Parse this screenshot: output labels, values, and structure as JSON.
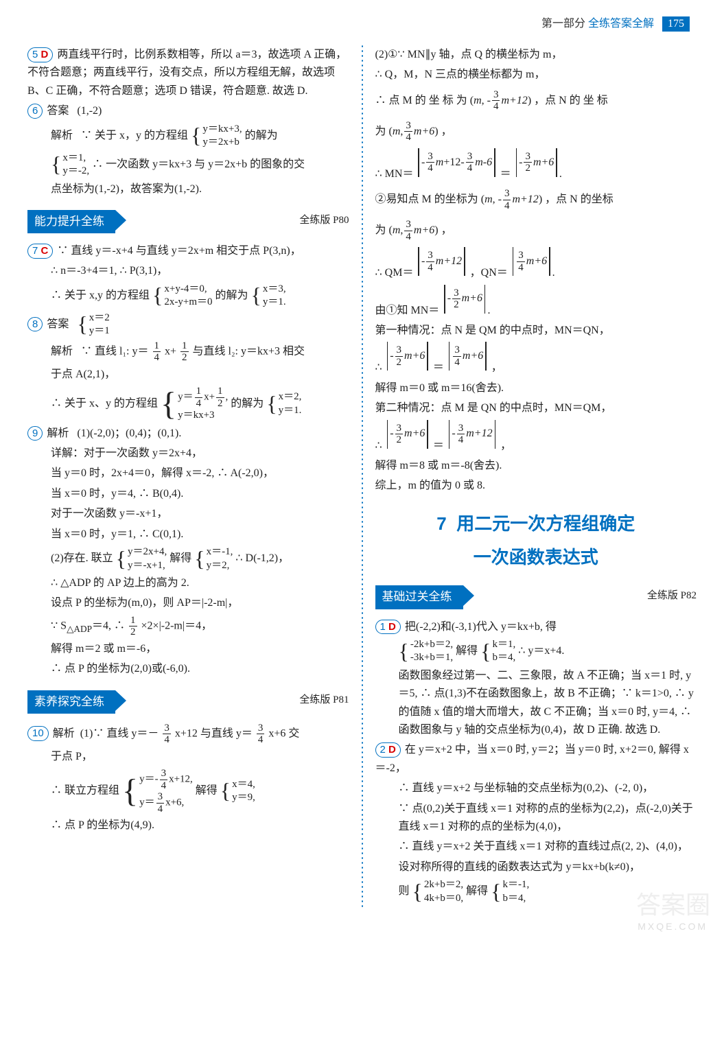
{
  "header": {
    "part": "第一部分",
    "title": "全练答案全解",
    "pagenum": "175"
  },
  "sections": {
    "s1": {
      "label": "能力提升全练",
      "ref": "全练版 P80"
    },
    "s2": {
      "label": "素养探究全练",
      "ref": "全练版 P81"
    },
    "s3": {
      "label": "基础过关全练",
      "ref": "全练版 P82"
    }
  },
  "chapter": {
    "num": "7",
    "title1": "用二元一次方程组确定",
    "title2": "一次函数表达式"
  },
  "q5": {
    "num": "5",
    "letter": "D",
    "t": "两直线平行时，比例系数相等，所以 a＝3，故选项 A 正确，不符合题意；两直线平行，没有交点，所以方程组无解，故选项 B、C 正确，不符合题意；选项 D 错误，符合题意. 故选 D."
  },
  "q6": {
    "num": "6",
    "ans_label": "答案",
    "ans": "(1,-2)",
    "jx": "解析",
    "t1": "∵ 关于 x，y 的方程组",
    "sys1a": "y＝kx+3,",
    "sys1b": "y＝2x+b",
    "t1b": "的解为",
    "sys2a": "x＝1,",
    "sys2b": "y＝-2,",
    "t2": "∴ 一次函数 y＝kx+3 与 y＝2x+b 的图象的交",
    "t3": "点坐标为(1,-2)，故答案为(1,-2)."
  },
  "q7": {
    "num": "7",
    "letter": "C",
    "t1": "∵ 直线 y＝-x+4 与直线 y＝2x+m 相交于点 P(3,n)，",
    "t2": "∴ n＝-3+4＝1, ∴ P(3,1)，",
    "t3": "∴ 关于 x,y 的方程组",
    "sys1a": "x+y-4＝0,",
    "sys1b": "2x-y+m＝0",
    "t3b": "的解为",
    "sys2a": "x＝3,",
    "sys2b": "y＝1."
  },
  "q8": {
    "num": "8",
    "ans_label": "答案",
    "sysAa": "x＝2",
    "sysAb": "y＝1",
    "jx": "解析",
    "t1": "∵ 直线 l₁: y＝",
    "t1b": "x+",
    "t1c": " 与直线 l₂: y＝kx+3 相交",
    "t2": "于点 A(2,1)，",
    "t3": "∴ 关于 x、y 的方程组",
    "sys1a_pre": "y＝",
    "sys1a_post": "x+",
    "sys1a_end": ",",
    "sys1b": "y＝kx+3",
    "t3b": "的解为",
    "sys2a": "x＝2,",
    "sys2b": "y＝1."
  },
  "q9": {
    "num": "9",
    "jx": "解析",
    "t1": "(1)(-2,0)；(0,4)；(0,1).",
    "t2": "详解：对于一次函数 y＝2x+4，",
    "t3": "当 y＝0 时，2x+4＝0，解得 x＝-2, ∴ A(-2,0)，",
    "t4": "当 x＝0 时，y＝4, ∴ B(0,4).",
    "t5": "对于一次函数 y＝-x+1，",
    "t6": "当 x＝0 时，y＝1, ∴ C(0,1).",
    "t7": "(2)存在. 联立",
    "sys1a": "y＝2x+4,",
    "sys1b": "y＝-x+1,",
    "t7b": "解得",
    "sys2a": "x＝-1,",
    "sys2b": "y＝2,",
    "t7c": "∴ D(-1,2)，",
    "t8": "∴ △ADP 的 AP 边上的高为 2.",
    "t9": "设点 P 的坐标为(m,0)，则 AP＝|-2-m|，",
    "t10a": "∵ S",
    "t10sub": "△ADP",
    "t10b": "＝4, ∴ ",
    "t10c": "×2×|-2-m|＝4，",
    "t11": "解得 m＝2 或 m＝-6，",
    "t12": "∴ 点 P 的坐标为(2,0)或(-6,0)."
  },
  "q10": {
    "num": "10",
    "jx": "解析",
    "t1": "(1)∵ 直线 y＝－",
    "t1b": "x+12 与直线 y＝",
    "t1c": "x+6 交",
    "t2": "于点 P，",
    "t3": "∴ 联立方程组",
    "sys1a_pre": "y＝-",
    "sys1a_post": "x+12,",
    "sys1b_pre": "y＝",
    "sys1b_post": "x+6,",
    "t3b": "解得",
    "sys2a": "x＝4,",
    "sys2b": "y＝9,",
    "t4": "∴ 点 P 的坐标为(4,9)."
  },
  "r1": {
    "t1": "(2)①∵ MN∥y 轴，点 Q 的横坐标为 m，",
    "t2": "∴ Q，M，N 三点的横坐标都为 m，",
    "t3a": "∴ 点 M 的 坐 标 为",
    "t3b": "，点 N 的 坐 标",
    "t4a": "为",
    "t4b": "，",
    "t5a": "∴ MN＝",
    "t5b": "＝",
    "t6a": "②易知点 M 的坐标为",
    "t6b": "，点 N 的坐标",
    "t7a": "为",
    "t7b": "，",
    "t8a": "∴ QM＝",
    "t8b": "，QN＝",
    "t9a": "由①知 MN＝",
    "t10": "第一种情况：点 N 是 QM 的中点时，MN＝QN，",
    "t11a": "∴ ",
    "t11b": "＝",
    "t11c": "，",
    "t12": "解得 m＝0 或 m＝16(舍去).",
    "t13": "第二种情况：点 M 是 QN 的中点时，MN＝QM，",
    "t14a": "∴ ",
    "t14b": "＝",
    "t14c": "，",
    "t15": "解得 m＝8 或 m＝-8(舍去).",
    "t16": "综上，m 的值为 0 或 8."
  },
  "rq1": {
    "num": "1",
    "letter": "D",
    "t1": "把(-2,2)和(-3,1)代入 y＝kx+b, 得",
    "sys1a": "-2k+b＝2,",
    "sys1b": "-3k+b＝1,",
    "t1b": "解得",
    "sys2a": "k＝1,",
    "sys2b": "b＝4,",
    "t1c": "∴ y＝x+4.",
    "t2": "函数图象经过第一、二、三象限，故 A 不正确；当 x＝1 时, y＝5, ∴ 点(1,3)不在函数图象上，故 B 不正确；∵ k＝1>0, ∴ y 的值随 x 值的增大而增大，故 C 不正确；当 x＝0 时, y＝4, ∴ 函数图象与 y 轴的交点坐标为(0,4)，故 D 正确. 故选 D."
  },
  "rq2": {
    "num": "2",
    "letter": "D",
    "t1": "在 y＝x+2 中，当 x＝0 时, y＝2；当 y＝0 时, x+2＝0, 解得 x＝-2，",
    "t2": "∴ 直线 y＝x+2 与坐标轴的交点坐标为(0,2)、(-2, 0)，",
    "t3": "∵ 点(0,2)关于直线 x＝1 对称的点的坐标为(2,2)，点(-2,0)关于直线 x＝1 对称的点的坐标为(4,0)，",
    "t4": "∴ 直线 y＝x+2 关于直线 x＝1 对称的直线过点(2, 2)、(4,0)，",
    "t5": "设对称所得的直线的函数表达式为 y＝kx+b(k≠0)，",
    "t6a": "则",
    "sys1a": "2k+b＝2,",
    "sys1b": "4k+b＝0,",
    "t6b": "解得",
    "sys2a": "k＝-1,",
    "sys2b": "b＝4,"
  },
  "fracs": {
    "n1": "1",
    "n2": "2",
    "n3": "3",
    "n4": "4"
  },
  "misc": {
    "m": "m",
    "mp12": "m+12",
    "mp6": "m+6",
    "mm6": "m-6",
    "dot": "."
  }
}
